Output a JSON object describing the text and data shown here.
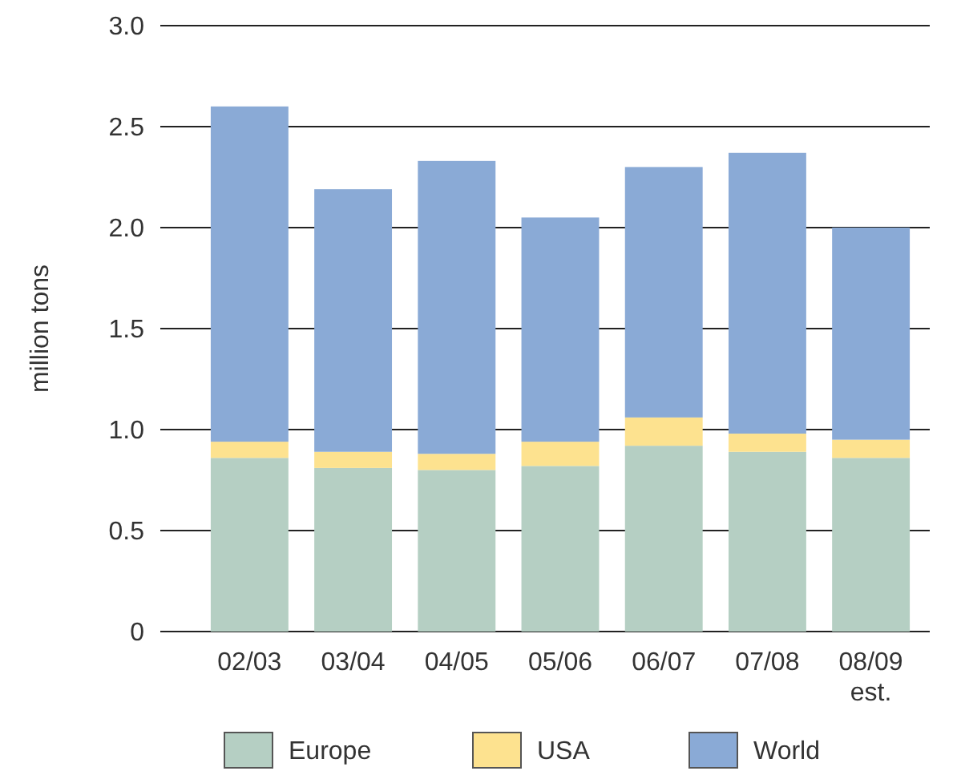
{
  "chart_data": {
    "type": "bar",
    "stacked": true,
    "ylabel": "million tons",
    "categories": [
      "02/03",
      "03/04",
      "04/05",
      "05/06",
      "06/07",
      "07/08",
      "08/09\nest."
    ],
    "series": [
      {
        "name": "Europe",
        "color": "#b5cfc3",
        "values": [
          0.86,
          0.81,
          0.8,
          0.82,
          0.92,
          0.89,
          0.86
        ]
      },
      {
        "name": "USA",
        "color": "#fde28f",
        "values": [
          0.08,
          0.08,
          0.08,
          0.12,
          0.14,
          0.09,
          0.09
        ]
      },
      {
        "name": "World",
        "color": "#8aaad6",
        "values": [
          1.66,
          1.3,
          1.45,
          1.11,
          1.24,
          1.39,
          1.05
        ]
      }
    ],
    "ylim": [
      0,
      3
    ],
    "yticks": [
      0,
      {
        "value": 0.5,
        "label": "0.5"
      },
      {
        "value": 1,
        "label": "1.0"
      },
      {
        "value": 1.5,
        "label": "1.5"
      },
      {
        "value": 2,
        "label": "2.0"
      },
      {
        "value": 2.5,
        "label": "2.5"
      },
      {
        "value": 3,
        "label": "3.0"
      }
    ],
    "grid": "y",
    "legend": "bottom"
  }
}
